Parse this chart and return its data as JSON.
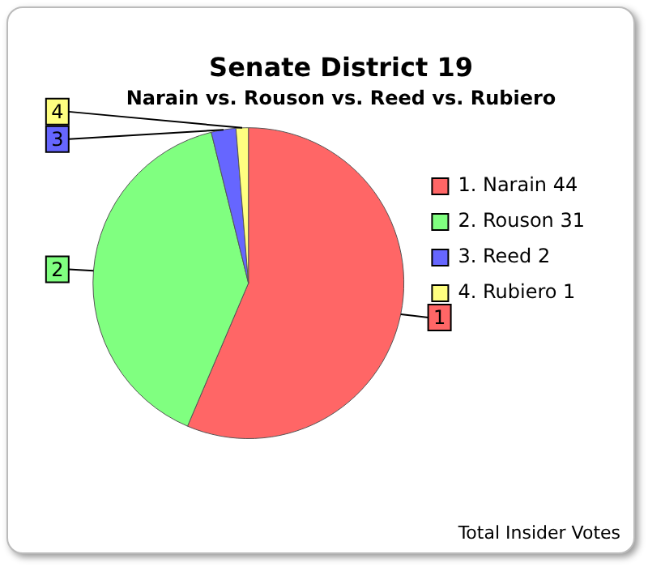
{
  "chart_data": {
    "type": "pie",
    "title": "Senate District 19",
    "subtitle": "Narain vs. Rouson vs. Reed vs. Rubiero",
    "categories": [
      "1. Narain 44",
      "2. Rouson 31",
      "3. Reed 2",
      "4. Rubiero 1"
    ],
    "values": [
      44,
      31,
      2,
      1
    ],
    "colors": [
      "#ff6666",
      "#80ff80",
      "#6666ff",
      "#ffff80"
    ],
    "legend": "right",
    "annotations": [
      {
        "text": "1",
        "x": "1. Narain 44"
      },
      {
        "text": "2",
        "x": "2. Rouson 31"
      },
      {
        "text": "3",
        "x": "3. Reed 2"
      },
      {
        "text": "4",
        "x": "4. Rubiero 1"
      },
      "Total Insider Votes"
    ]
  }
}
